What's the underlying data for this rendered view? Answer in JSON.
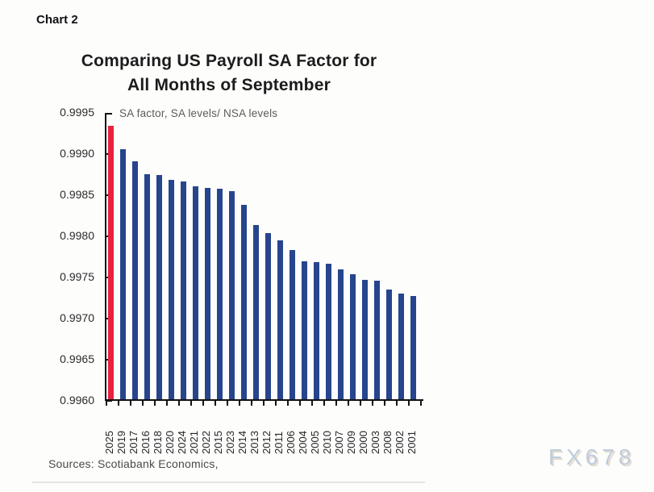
{
  "page": {
    "chart_label": "Chart 2"
  },
  "chart_data": {
    "type": "bar",
    "title": "Comparing US Payroll SA Factor for All Months of September",
    "title_lines": [
      "Comparing US Payroll SA Factor for",
      "All Months of September"
    ],
    "subtitle": "SA factor, SA levels/ NSA levels",
    "categories": [
      "2025",
      "2019",
      "2017",
      "2016",
      "2018",
      "2020",
      "2024",
      "2021",
      "2022",
      "2015",
      "2023",
      "2014",
      "2013",
      "2012",
      "2011",
      "2006",
      "2004",
      "2005",
      "2010",
      "2007",
      "2009",
      "2000",
      "2003",
      "2008",
      "2002",
      "2001"
    ],
    "values": [
      0.99932,
      0.99904,
      0.99889,
      0.99874,
      0.99873,
      0.99867,
      0.99865,
      0.99859,
      0.99857,
      0.99856,
      0.99853,
      0.99836,
      0.99812,
      0.99802,
      0.99793,
      0.99781,
      0.99768,
      0.99767,
      0.99765,
      0.99758,
      0.99752,
      0.99745,
      0.99744,
      0.99733,
      0.99728,
      0.99726
    ],
    "highlight_index": 0,
    "highlight_color": "#e8213f",
    "bar_color": "#27458d",
    "ylim": [
      0.996,
      0.9995
    ],
    "yticks": [
      "0.9995",
      "0.9990",
      "0.9985",
      "0.9980",
      "0.9975",
      "0.9970",
      "0.9965",
      "0.9960"
    ],
    "grid": false,
    "legend": "none",
    "xlabel": "",
    "ylabel": ""
  },
  "footer": {
    "sources": "Sources: Scotiabank Economics,"
  },
  "watermark": {
    "text": "FX678"
  }
}
